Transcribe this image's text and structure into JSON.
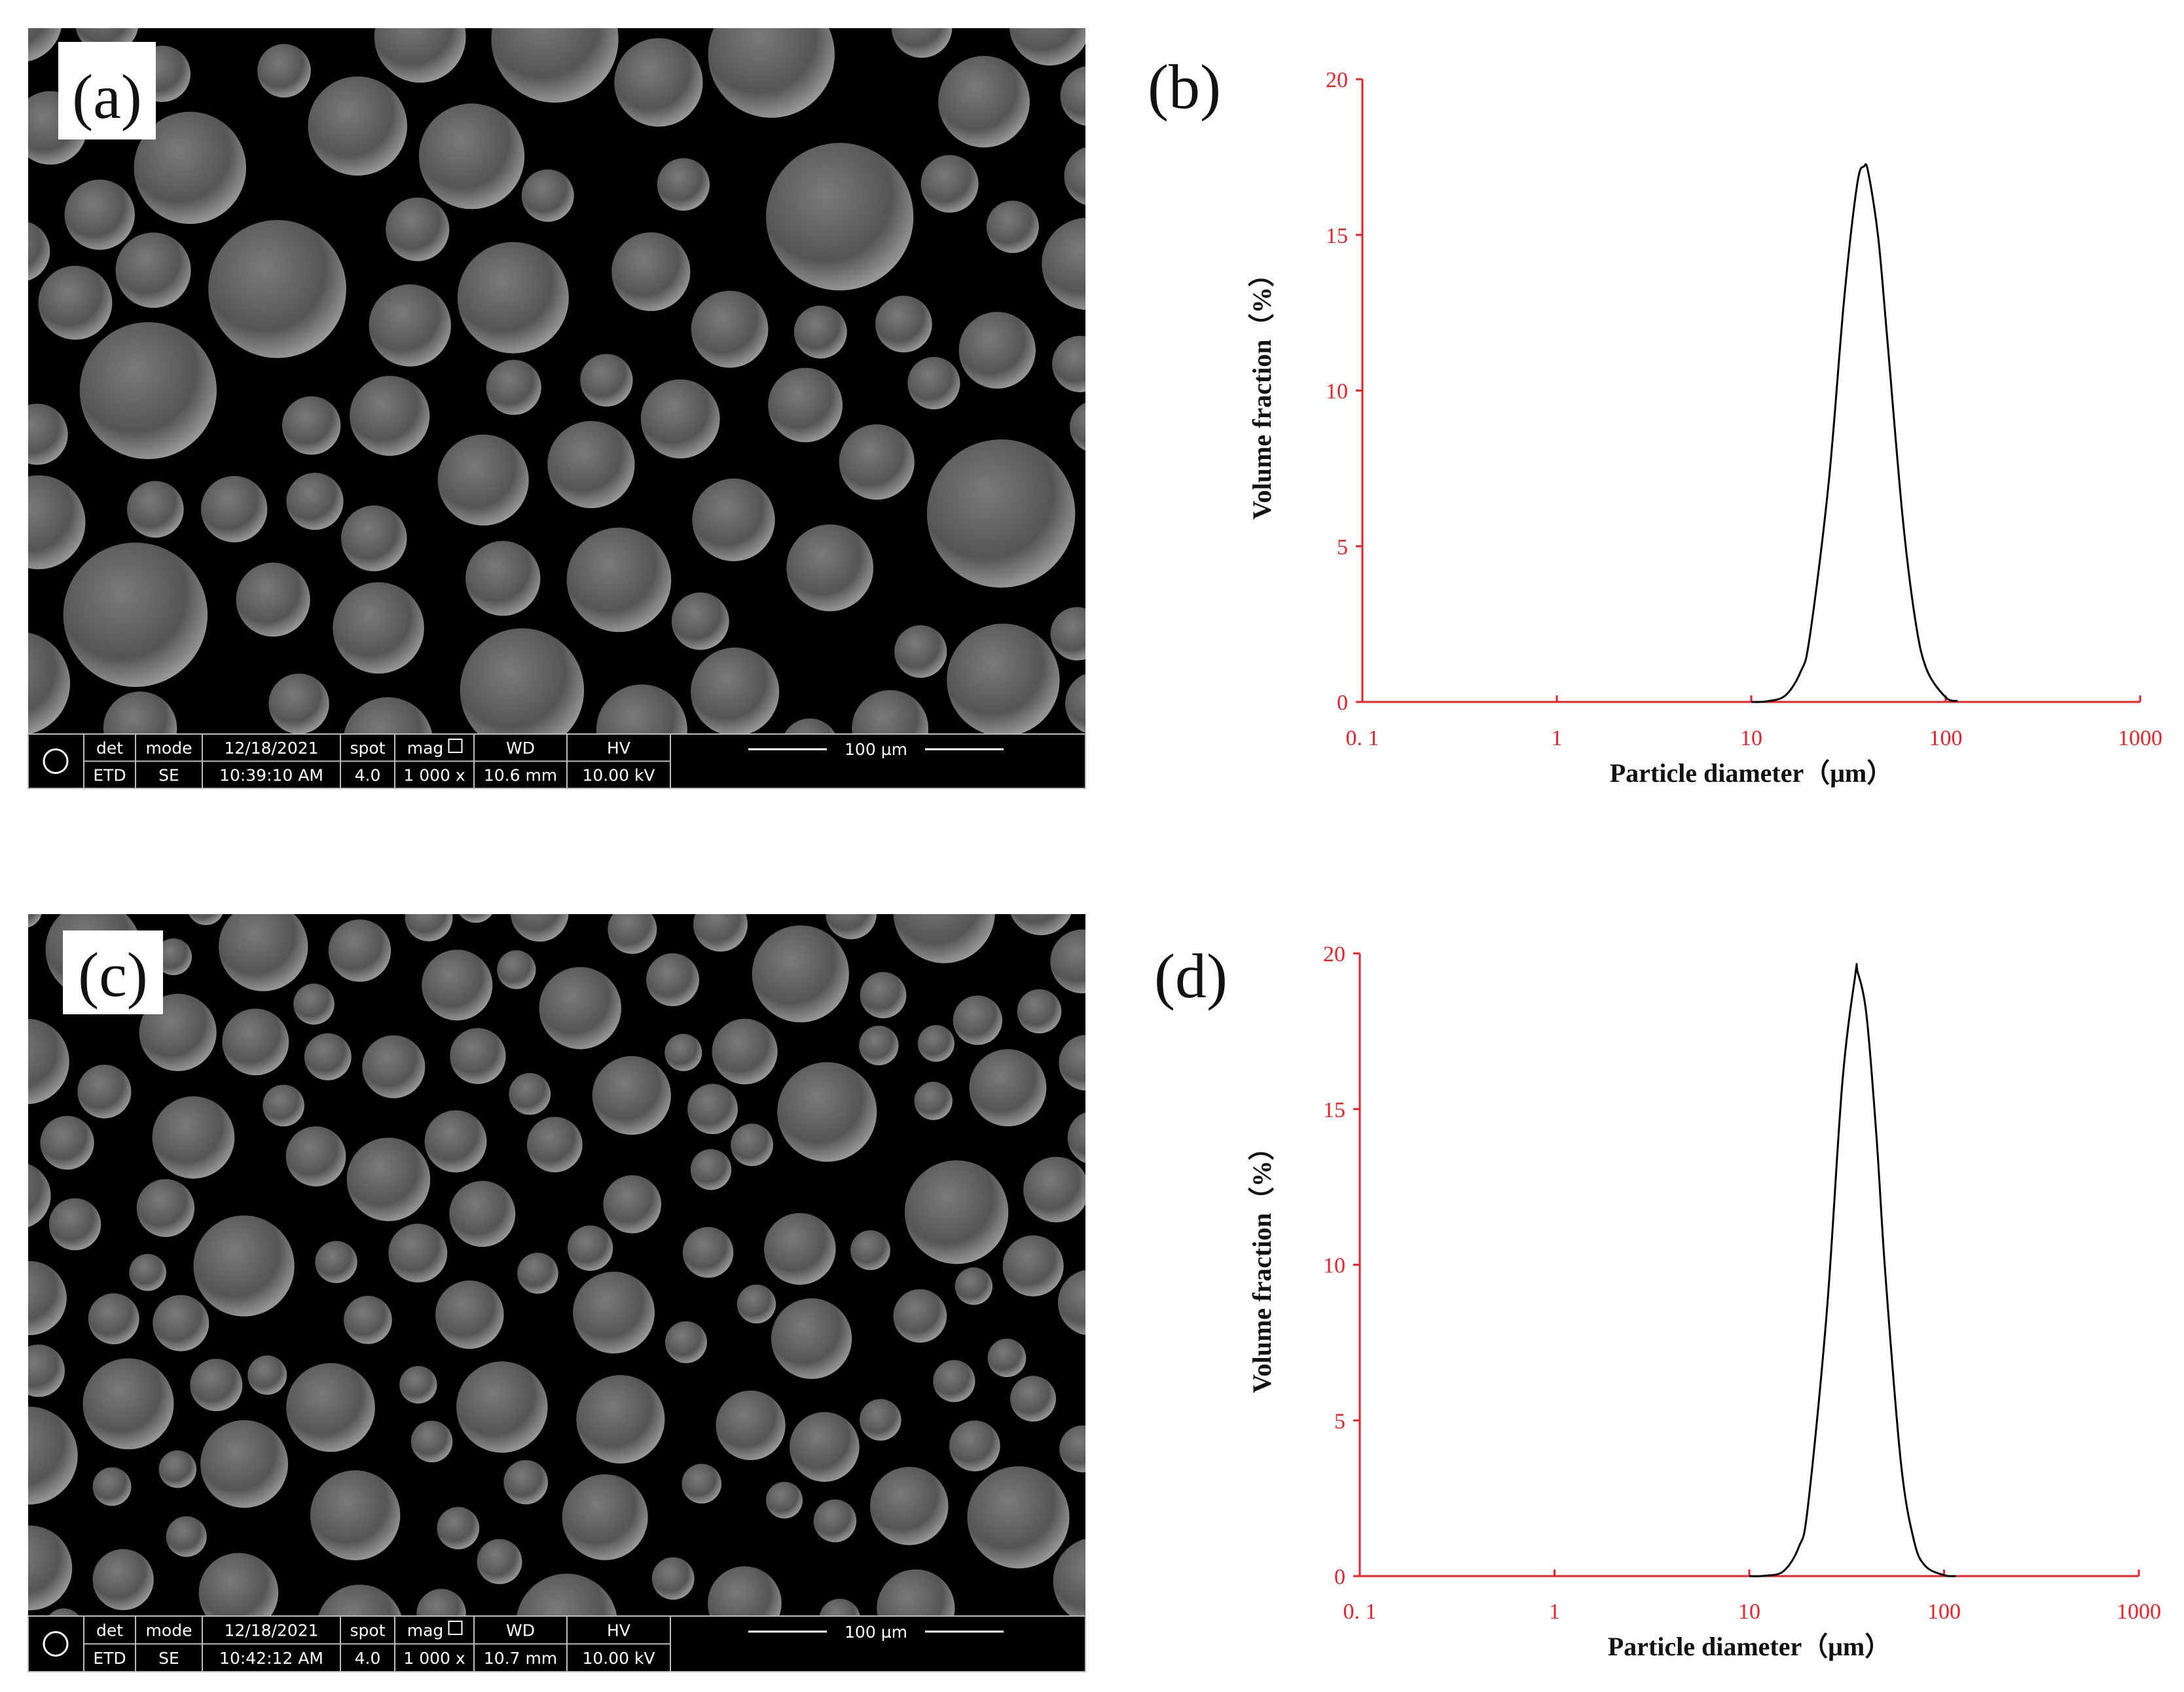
{
  "sem_images": [
    {
      "label": "(a)",
      "info_headers": [
        "det",
        "mode",
        "12/18/2021",
        "spot",
        "mag",
        "WD",
        "HV"
      ],
      "info_values": [
        "ETD",
        "SE",
        "10:39:10 AM",
        "4.0",
        "1 000 x",
        "10.6 mm",
        "10.00 kV"
      ],
      "scale_bar": "100 µm"
    },
    {
      "label": "(c)",
      "info_headers": [
        "det",
        "mode",
        "12/18/2021",
        "spot",
        "mag",
        "WD",
        "HV"
      ],
      "info_values": [
        "ETD",
        "SE",
        "10:42:12 AM",
        "4.0",
        "1 000 x",
        "10.7 mm",
        "10.00 kV"
      ],
      "scale_bar": "100 µm"
    }
  ],
  "chart_data": [
    {
      "type": "line",
      "title": "(b)",
      "x_label": "Particle diameter（μm）",
      "y_label": "Volume fraction（%）",
      "x": [
        10,
        12,
        15,
        18,
        20,
        25,
        30,
        35,
        38,
        40,
        45,
        50,
        60,
        70,
        80,
        100,
        115
      ],
      "values": [
        0,
        0.02,
        0.21,
        0.99,
        2.1,
        7.03,
        12.9,
        16.6,
        17.2,
        17.0,
        14.9,
        11.7,
        5.96,
        2.57,
        1.03,
        0.15,
        0.03
      ],
      "color": "#000000",
      "axis_color": "#e8212a",
      "xscale": "log",
      "xlim": [
        0.1,
        1000
      ],
      "xticks": [
        {
          "value": 0.1,
          "label": "0. 1"
        },
        1,
        10,
        100,
        1000
      ],
      "ylim": [
        0,
        20
      ],
      "yticks": [
        0,
        5,
        10,
        15,
        20
      ]
    },
    {
      "type": "line",
      "title": "(d)",
      "x_label": "Particle diameter（μm）",
      "y_label": "Volume fraction（%）",
      "x": [
        10,
        12,
        15,
        18,
        20,
        25,
        30,
        35,
        36,
        40,
        45,
        50,
        60,
        70,
        80,
        100,
        115
      ],
      "values": [
        0,
        0.01,
        0.16,
        0.95,
        2.24,
        8.49,
        15.8,
        19.3,
        19.4,
        18.0,
        14.1,
        9.67,
        3.66,
        1.15,
        0.33,
        0.03,
        0
      ],
      "color": "#000000",
      "axis_color": "#e8212a",
      "xscale": "log",
      "xlim": [
        0.1,
        1000
      ],
      "xticks": [
        {
          "value": 0.1,
          "label": "0. 1"
        },
        1,
        10,
        100,
        1000
      ],
      "ylim": [
        0,
        20
      ],
      "yticks": [
        0,
        5,
        10,
        15,
        20
      ]
    }
  ]
}
